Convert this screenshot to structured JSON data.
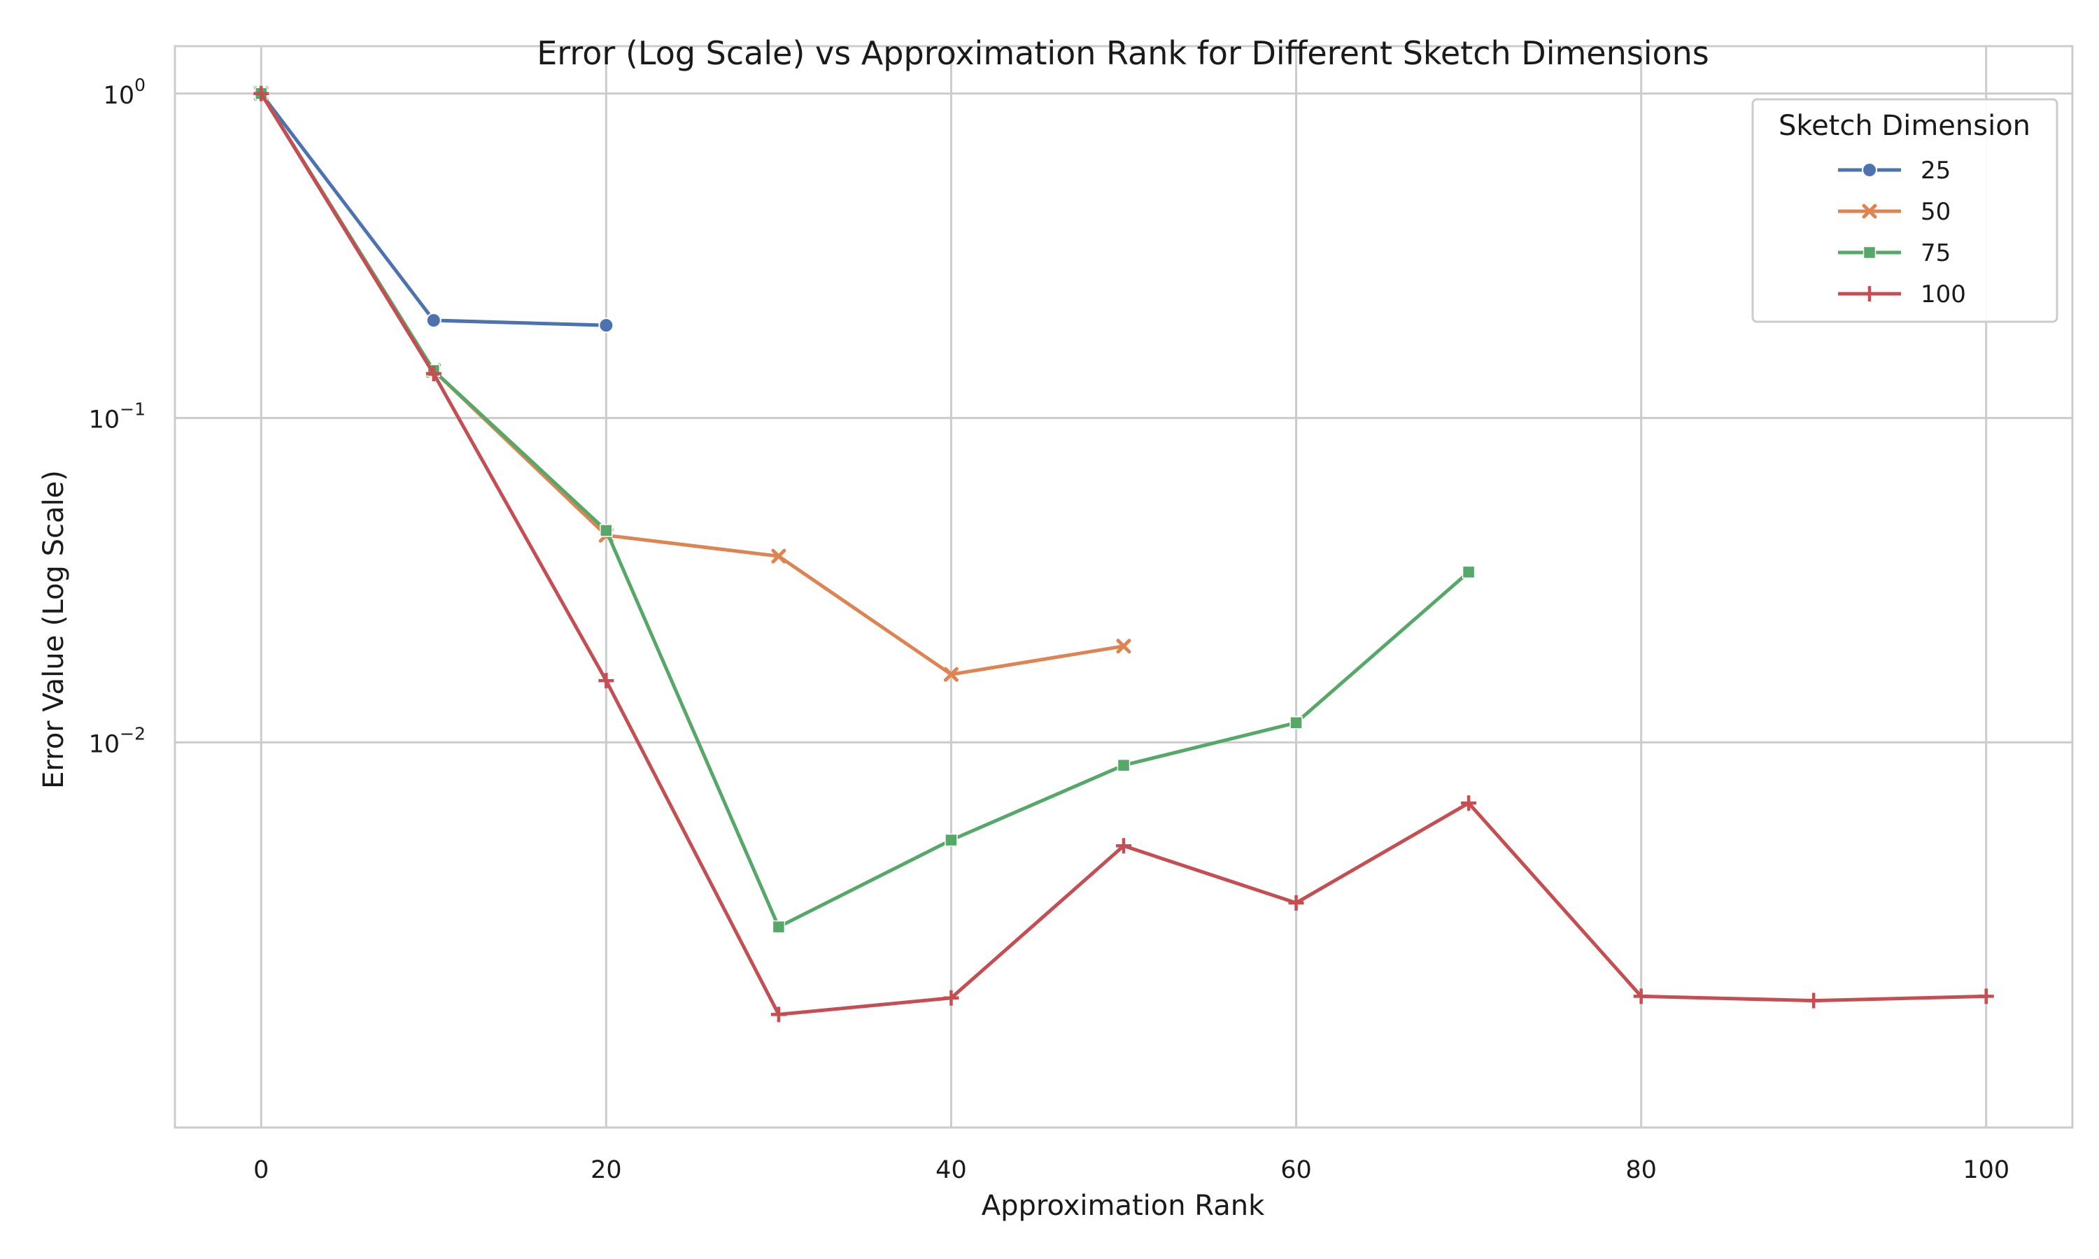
{
  "chart_data": {
    "type": "line",
    "title": "Error (Log Scale) vs Approximation Rank for Different Sketch Dimensions",
    "xlabel": "Approximation Rank",
    "ylabel": "Error Value (Log Scale)",
    "xlim": [
      -5,
      105
    ],
    "ylim": [
      0.00065,
      1.4
    ],
    "y_scale": "log",
    "x_ticks": [
      0,
      20,
      40,
      60,
      80,
      100
    ],
    "y_ticks": [
      1,
      0.1,
      0.01
    ],
    "y_tick_labels": [
      {
        "base": "10",
        "exp": "0"
      },
      {
        "base": "10",
        "exp": "−1"
      },
      {
        "base": "10",
        "exp": "−2"
      }
    ],
    "grid": true,
    "legend_position": "top-right",
    "legend_title": "Sketch Dimension",
    "series": [
      {
        "name": "25",
        "color": "#4c72b0",
        "marker": "circle",
        "x": [
          0,
          10,
          20
        ],
        "y": [
          1.0,
          0.2,
          0.193
        ]
      },
      {
        "name": "50",
        "color": "#dd8452",
        "marker": "x",
        "x": [
          0,
          10,
          20,
          30,
          40,
          50
        ],
        "y": [
          1.0,
          0.14,
          0.0435,
          0.0375,
          0.0162,
          0.0198
        ]
      },
      {
        "name": "75",
        "color": "#55a868",
        "marker": "square",
        "x": [
          0,
          10,
          20,
          30,
          40,
          50,
          60,
          70
        ],
        "y": [
          1.0,
          0.14,
          0.045,
          0.0027,
          0.005,
          0.0085,
          0.0115,
          0.0335
        ]
      },
      {
        "name": "100",
        "color": "#c44e52",
        "marker": "plus",
        "x": [
          0,
          10,
          20,
          30,
          40,
          50,
          60,
          70,
          80,
          90,
          100
        ],
        "y": [
          1.0,
          0.137,
          0.0155,
          0.00145,
          0.00163,
          0.0048,
          0.0032,
          0.0065,
          0.00165,
          0.0016,
          0.00165
        ]
      }
    ]
  }
}
